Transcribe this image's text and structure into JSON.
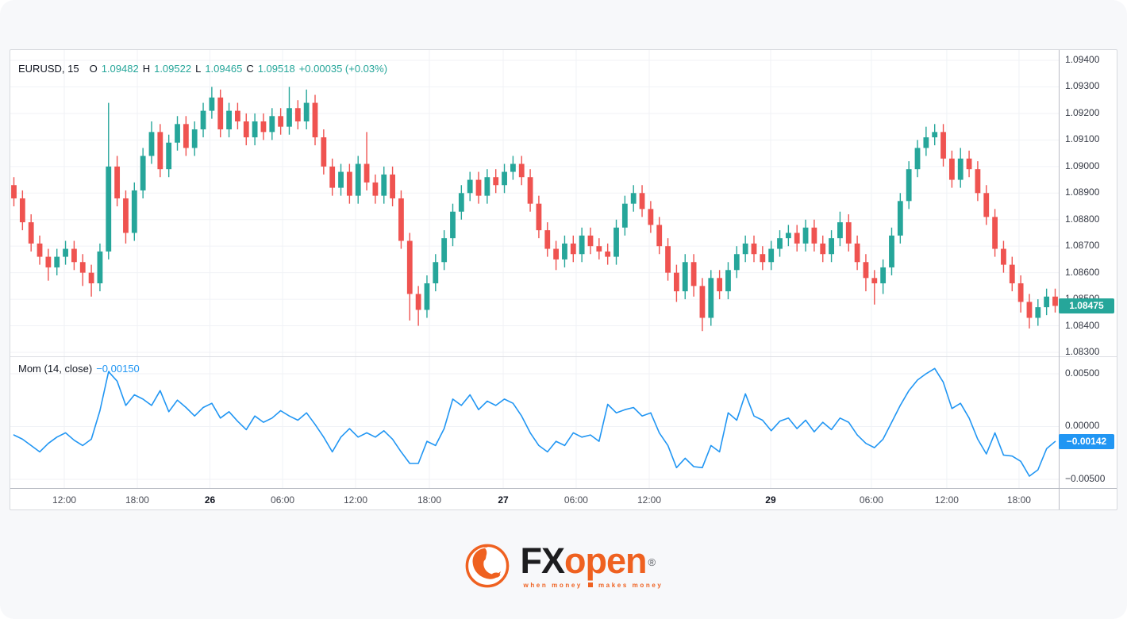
{
  "chart": {
    "symbol_legend": {
      "symbol": "EURUSD, 15",
      "o_label": "O",
      "o_value": "1.09482",
      "h_label": "H",
      "h_value": "1.09522",
      "l_label": "L",
      "l_value": "1.09465",
      "c_label": "C",
      "c_value": "1.09518",
      "change": "+0.00035 (+0.03%)"
    },
    "mom_legend": {
      "label": "Mom (14, close)",
      "value": "−0.00150"
    },
    "price_badge": {
      "label": "1.08475",
      "value": 1.08475,
      "color": "#26a69a"
    },
    "mom_badge": {
      "label": "−0.00142",
      "value": -0.00142,
      "color": "#2196f3"
    },
    "colors": {
      "up": "#26a69a",
      "down": "#ef5350",
      "mom_line": "#2196f3",
      "grid": "#f0f2f6",
      "accent_orange": "#ef6120"
    }
  },
  "chart_data": {
    "type": "candlestick+line",
    "title": "EURUSD 15-minute candles with Momentum (14, close) indicator",
    "price_pane": {
      "value_top": 1.09439,
      "value_bottom": 1.08285
    },
    "mom_pane": {
      "value_top": 0.00665,
      "value_bottom": -0.00583
    },
    "price_axis_ticks": [
      {
        "label": "1.09400",
        "value": 1.094
      },
      {
        "label": "1.09300",
        "value": 1.093
      },
      {
        "label": "1.09200",
        "value": 1.092
      },
      {
        "label": "1.09100",
        "value": 1.091
      },
      {
        "label": "1.09000",
        "value": 1.09
      },
      {
        "label": "1.08900",
        "value": 1.089
      },
      {
        "label": "1.08800",
        "value": 1.088
      },
      {
        "label": "1.08700",
        "value": 1.087
      },
      {
        "label": "1.08600",
        "value": 1.086
      },
      {
        "label": "1.08500",
        "value": 1.085
      },
      {
        "label": "1.08400",
        "value": 1.084
      },
      {
        "label": "1.08300",
        "value": 1.083
      }
    ],
    "mom_axis_ticks": [
      {
        "label": "0.00500",
        "value": 0.005
      },
      {
        "label": "0.00000",
        "value": 0.0
      },
      {
        "label": "−0.00500",
        "value": -0.005
      }
    ],
    "time_axis_ticks": [
      {
        "label": "12:00",
        "pos": 0.0515,
        "major": false
      },
      {
        "label": "18:00",
        "pos": 0.1211,
        "major": false
      },
      {
        "label": "26",
        "pos": 0.1904,
        "major": true
      },
      {
        "label": "06:00",
        "pos": 0.2597,
        "major": false
      },
      {
        "label": "12:00",
        "pos": 0.3293,
        "major": false
      },
      {
        "label": "18:00",
        "pos": 0.3997,
        "major": false
      },
      {
        "label": "27",
        "pos": 0.4701,
        "major": true
      },
      {
        "label": "06:00",
        "pos": 0.5397,
        "major": false
      },
      {
        "label": "12:00",
        "pos": 0.6094,
        "major": false
      },
      {
        "label": "29",
        "pos": 0.7252,
        "major": true
      },
      {
        "label": "06:00",
        "pos": 0.8213,
        "major": false
      },
      {
        "label": "12:00",
        "pos": 0.8932,
        "major": false
      },
      {
        "label": "18:00",
        "pos": 0.9621,
        "major": false
      }
    ],
    "candles_ohlc": [
      [
        1.0893,
        1.0896,
        1.0885,
        1.0888
      ],
      [
        1.0888,
        1.0891,
        1.0876,
        1.0879
      ],
      [
        1.0879,
        1.0882,
        1.0868,
        1.0871
      ],
      [
        1.0871,
        1.0874,
        1.0863,
        1.0866
      ],
      [
        1.0866,
        1.0869,
        1.0857,
        1.0862
      ],
      [
        1.0862,
        1.0869,
        1.0859,
        1.0866
      ],
      [
        1.0866,
        1.0872,
        1.0863,
        1.0869
      ],
      [
        1.0869,
        1.0872,
        1.0861,
        1.0864
      ],
      [
        1.0864,
        1.0867,
        1.0855,
        1.086
      ],
      [
        1.086,
        1.0863,
        1.0851,
        1.0856
      ],
      [
        1.0856,
        1.0871,
        1.0853,
        1.0868
      ],
      [
        1.0868,
        1.0924,
        1.0865,
        1.09
      ],
      [
        1.09,
        1.0904,
        1.0885,
        1.0888
      ],
      [
        1.0888,
        1.0891,
        1.0871,
        1.0875
      ],
      [
        1.0875,
        1.0894,
        1.0872,
        1.0891
      ],
      [
        1.0891,
        1.0907,
        1.0888,
        1.0904
      ],
      [
        1.0904,
        1.0917,
        1.0901,
        1.0913
      ],
      [
        1.0913,
        1.0916,
        1.0896,
        1.0899
      ],
      [
        1.0899,
        1.0912,
        1.0896,
        1.0909
      ],
      [
        1.0909,
        1.0919,
        1.0906,
        1.0916
      ],
      [
        1.0916,
        1.0919,
        1.0904,
        1.0907
      ],
      [
        1.0907,
        1.0917,
        1.0904,
        1.0914
      ],
      [
        1.0914,
        1.0924,
        1.0911,
        1.0921
      ],
      [
        1.0921,
        1.093,
        1.0918,
        1.0926
      ],
      [
        1.0926,
        1.0929,
        1.0911,
        1.0914
      ],
      [
        1.0914,
        1.0924,
        1.0911,
        1.0921
      ],
      [
        1.0921,
        1.0924,
        1.0914,
        1.0917
      ],
      [
        1.0917,
        1.092,
        1.0908,
        1.0911
      ],
      [
        1.0911,
        1.092,
        1.0908,
        1.0917
      ],
      [
        1.0917,
        1.092,
        1.091,
        1.0913
      ],
      [
        1.0913,
        1.0922,
        1.091,
        1.0919
      ],
      [
        1.0919,
        1.0922,
        1.0912,
        1.0915
      ],
      [
        1.0915,
        1.093,
        1.0912,
        1.0922
      ],
      [
        1.0922,
        1.0925,
        1.0914,
        1.0917
      ],
      [
        1.0917,
        1.0929,
        1.0914,
        1.0924
      ],
      [
        1.0924,
        1.0927,
        1.0908,
        1.0911
      ],
      [
        1.0911,
        1.0914,
        1.0897,
        1.09
      ],
      [
        1.09,
        1.0903,
        1.0889,
        1.0892
      ],
      [
        1.0892,
        1.0901,
        1.0889,
        1.0898
      ],
      [
        1.0898,
        1.0901,
        1.0886,
        1.0889
      ],
      [
        1.0889,
        1.0904,
        1.0886,
        1.0901
      ],
      [
        1.0901,
        1.0913,
        1.0891,
        1.0894
      ],
      [
        1.0894,
        1.0897,
        1.0886,
        1.0889
      ],
      [
        1.0889,
        1.09,
        1.0886,
        1.0897
      ],
      [
        1.0897,
        1.09,
        1.0885,
        1.0888
      ],
      [
        1.0888,
        1.0891,
        1.0869,
        1.0872
      ],
      [
        1.0872,
        1.0875,
        1.0842,
        1.0852
      ],
      [
        1.0852,
        1.0855,
        1.084,
        1.0846
      ],
      [
        1.0846,
        1.0859,
        1.0843,
        1.0856
      ],
      [
        1.0856,
        1.0867,
        1.0853,
        1.0864
      ],
      [
        1.0864,
        1.0876,
        1.0861,
        1.0873
      ],
      [
        1.0873,
        1.0886,
        1.087,
        1.0883
      ],
      [
        1.0883,
        1.0893,
        1.088,
        1.089
      ],
      [
        1.089,
        1.0898,
        1.0887,
        1.0895
      ],
      [
        1.0895,
        1.0898,
        1.0886,
        1.0889
      ],
      [
        1.0889,
        1.0899,
        1.0886,
        1.0896
      ],
      [
        1.0896,
        1.0899,
        1.089,
        1.0893
      ],
      [
        1.0893,
        1.0901,
        1.089,
        1.0898
      ],
      [
        1.0898,
        1.0904,
        1.0895,
        1.0901
      ],
      [
        1.0901,
        1.0904,
        1.0893,
        1.0896
      ],
      [
        1.0896,
        1.0899,
        1.0883,
        1.0886
      ],
      [
        1.0886,
        1.0889,
        1.0873,
        1.0876
      ],
      [
        1.0876,
        1.0879,
        1.0866,
        1.0869
      ],
      [
        1.0869,
        1.0872,
        1.0861,
        1.0865
      ],
      [
        1.0865,
        1.0874,
        1.0862,
        1.0871
      ],
      [
        1.0871,
        1.0874,
        1.0864,
        1.0867
      ],
      [
        1.0867,
        1.0877,
        1.0864,
        1.0874
      ],
      [
        1.0874,
        1.0877,
        1.0867,
        1.087
      ],
      [
        1.087,
        1.0873,
        1.0865,
        1.0868
      ],
      [
        1.0868,
        1.0871,
        1.0863,
        1.0866
      ],
      [
        1.0866,
        1.088,
        1.0863,
        1.0877
      ],
      [
        1.0877,
        1.0889,
        1.0874,
        1.0886
      ],
      [
        1.0886,
        1.0893,
        1.0883,
        1.089
      ],
      [
        1.089,
        1.0893,
        1.0881,
        1.0884
      ],
      [
        1.0884,
        1.0887,
        1.0875,
        1.0878
      ],
      [
        1.0878,
        1.0881,
        1.0867,
        1.087
      ],
      [
        1.087,
        1.0873,
        1.0857,
        1.086
      ],
      [
        1.086,
        1.0863,
        1.0849,
        1.0853
      ],
      [
        1.0853,
        1.0867,
        1.085,
        1.0864
      ],
      [
        1.0864,
        1.0867,
        1.0851,
        1.0855
      ],
      [
        1.0855,
        1.0858,
        1.0838,
        1.0843
      ],
      [
        1.0843,
        1.0861,
        1.084,
        1.0858
      ],
      [
        1.0858,
        1.0861,
        1.085,
        1.0853
      ],
      [
        1.0853,
        1.0864,
        1.085,
        1.0861
      ],
      [
        1.0861,
        1.087,
        1.0858,
        1.0867
      ],
      [
        1.0867,
        1.0874,
        1.0864,
        1.0871
      ],
      [
        1.0871,
        1.0874,
        1.0864,
        1.0867
      ],
      [
        1.0867,
        1.087,
        1.0861,
        1.0864
      ],
      [
        1.0864,
        1.0872,
        1.0861,
        1.0869
      ],
      [
        1.0869,
        1.0876,
        1.0866,
        1.0873
      ],
      [
        1.0873,
        1.0878,
        1.087,
        1.0875
      ],
      [
        1.0875,
        1.0878,
        1.0868,
        1.0871
      ],
      [
        1.0871,
        1.088,
        1.0868,
        1.0877
      ],
      [
        1.0877,
        1.088,
        1.0868,
        1.0871
      ],
      [
        1.0871,
        1.0874,
        1.0864,
        1.0867
      ],
      [
        1.0867,
        1.0876,
        1.0864,
        1.0873
      ],
      [
        1.0873,
        1.0883,
        1.087,
        1.0879
      ],
      [
        1.0879,
        1.0882,
        1.0868,
        1.0871
      ],
      [
        1.0871,
        1.0874,
        1.0861,
        1.0864
      ],
      [
        1.0864,
        1.0867,
        1.0853,
        1.0858
      ],
      [
        1.0858,
        1.0861,
        1.0848,
        1.0856
      ],
      [
        1.0856,
        1.0865,
        1.0852,
        1.0862
      ],
      [
        1.0862,
        1.0877,
        1.0859,
        1.0874
      ],
      [
        1.0874,
        1.089,
        1.0871,
        1.0887
      ],
      [
        1.0887,
        1.0902,
        1.0884,
        1.0899
      ],
      [
        1.0899,
        1.091,
        1.0896,
        1.0907
      ],
      [
        1.0907,
        1.0915,
        1.0904,
        1.0911
      ],
      [
        1.0911,
        1.0916,
        1.0908,
        1.0913
      ],
      [
        1.0913,
        1.0916,
        1.09,
        1.0903
      ],
      [
        1.0903,
        1.0906,
        1.0892,
        1.0895
      ],
      [
        1.0895,
        1.0907,
        1.0892,
        1.0903
      ],
      [
        1.0903,
        1.0906,
        1.0896,
        1.0899
      ],
      [
        1.0899,
        1.0902,
        1.0887,
        1.089
      ],
      [
        1.089,
        1.0893,
        1.0878,
        1.0881
      ],
      [
        1.0881,
        1.0884,
        1.0866,
        1.0869
      ],
      [
        1.0869,
        1.0872,
        1.086,
        1.0863
      ],
      [
        1.0863,
        1.0866,
        1.0853,
        1.0856
      ],
      [
        1.0856,
        1.0859,
        1.0845,
        1.0849
      ],
      [
        1.0849,
        1.0852,
        1.0839,
        1.0843
      ],
      [
        1.0843,
        1.085,
        1.084,
        1.0847
      ],
      [
        1.0847,
        1.0854,
        1.0844,
        1.0851
      ],
      [
        1.0851,
        1.0854,
        1.0845,
        1.08475
      ]
    ],
    "momentum_values": [
      -0.0008,
      -0.0012,
      -0.0018,
      -0.0024,
      -0.0016,
      -0.001,
      -0.0006,
      -0.0013,
      -0.0018,
      -0.0012,
      0.0015,
      0.0052,
      0.0043,
      0.002,
      0.003,
      0.0026,
      0.002,
      0.0034,
      0.0014,
      0.0025,
      0.0018,
      0.001,
      0.0018,
      0.0022,
      0.0008,
      0.0014,
      0.0005,
      -0.0003,
      0.001,
      0.0004,
      0.0008,
      0.0015,
      0.001,
      0.0006,
      0.0013,
      0.0002,
      -0.001,
      -0.0024,
      -0.001,
      -0.0002,
      -0.001,
      -0.0006,
      -0.001,
      -0.0004,
      -0.0012,
      -0.0024,
      -0.0035,
      -0.0035,
      -0.0014,
      -0.0018,
      -0.0002,
      0.0026,
      0.002,
      0.003,
      0.0016,
      0.0024,
      0.002,
      0.0026,
      0.0022,
      0.001,
      -0.0006,
      -0.0018,
      -0.0024,
      -0.0014,
      -0.0018,
      -0.0006,
      -0.001,
      -0.0008,
      -0.0014,
      0.0021,
      0.0013,
      0.0016,
      0.0018,
      0.001,
      0.0013,
      -0.0006,
      -0.0018,
      -0.0039,
      -0.003,
      -0.0038,
      -0.0039,
      -0.0018,
      -0.0024,
      0.0013,
      0.0006,
      0.0031,
      0.001,
      0.0006,
      -0.0004,
      0.0005,
      0.0008,
      -0.0002,
      0.0006,
      -0.0005,
      0.0004,
      -0.0003,
      0.0008,
      0.0004,
      -0.0008,
      -0.0016,
      -0.002,
      -0.0012,
      0.0004,
      0.002,
      0.0034,
      0.0044,
      0.005,
      0.0055,
      0.0042,
      0.0017,
      0.0022,
      0.0008,
      -0.0012,
      -0.0026,
      -0.0006,
      -0.0027,
      -0.0028,
      -0.0033,
      -0.0047,
      -0.0041,
      -0.0021,
      -0.00142
    ]
  },
  "logo": {
    "brand_fx": "FX",
    "brand_open": "open",
    "reg": "®",
    "tagline_left": "when money",
    "tagline_right": "makes money"
  }
}
